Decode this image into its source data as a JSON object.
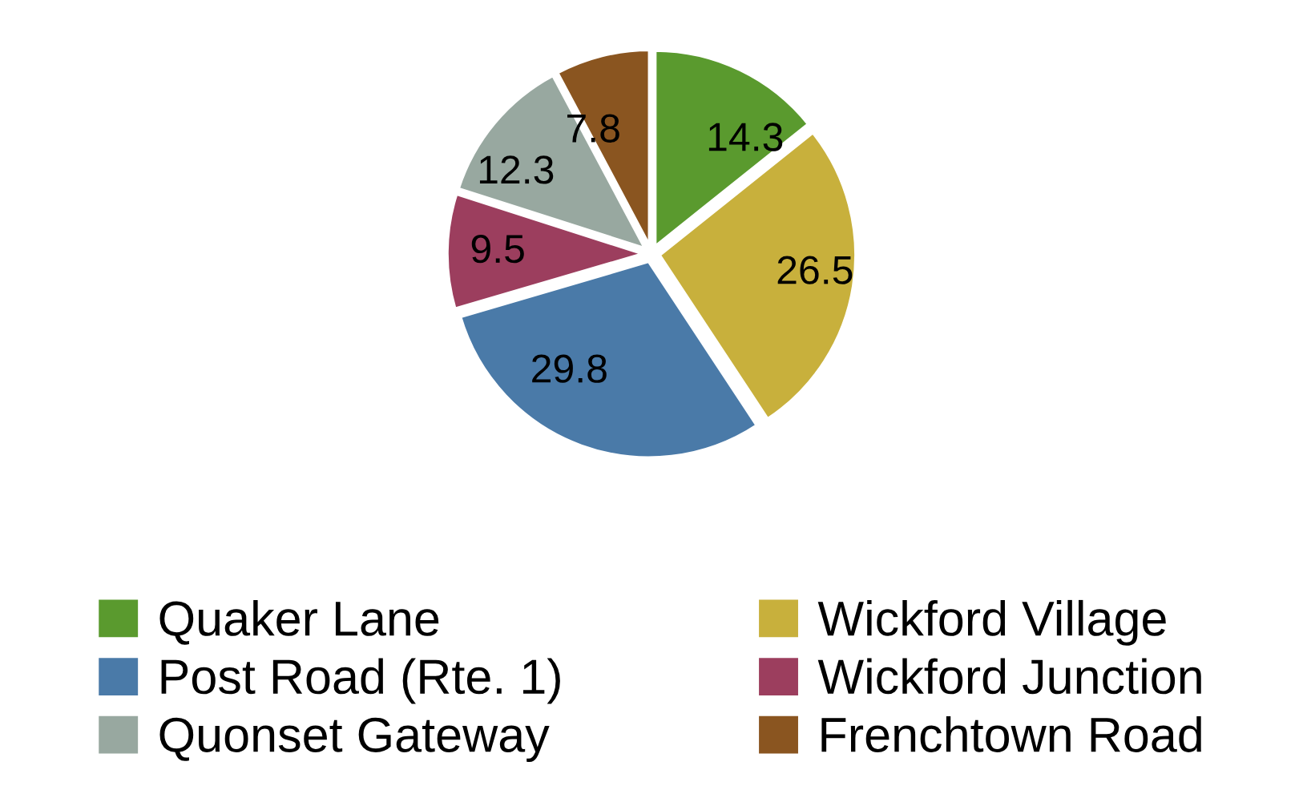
{
  "chart_data": {
    "type": "pie",
    "categories": [
      "Quaker Lane",
      "Wickford Village",
      "Post Road (Rte. 1)",
      "Wickford Junction",
      "Quonset Gateway",
      "Frenchtown Road"
    ],
    "values": [
      14.3,
      26.5,
      29.8,
      9.5,
      12.3,
      7.8
    ],
    "colors": [
      "#5a9a2e",
      "#c8b03c",
      "#4a7aa8",
      "#9c3e5e",
      "#98a8a0",
      "#8a5520"
    ],
    "data_labels": true,
    "legend": "bottom"
  }
}
